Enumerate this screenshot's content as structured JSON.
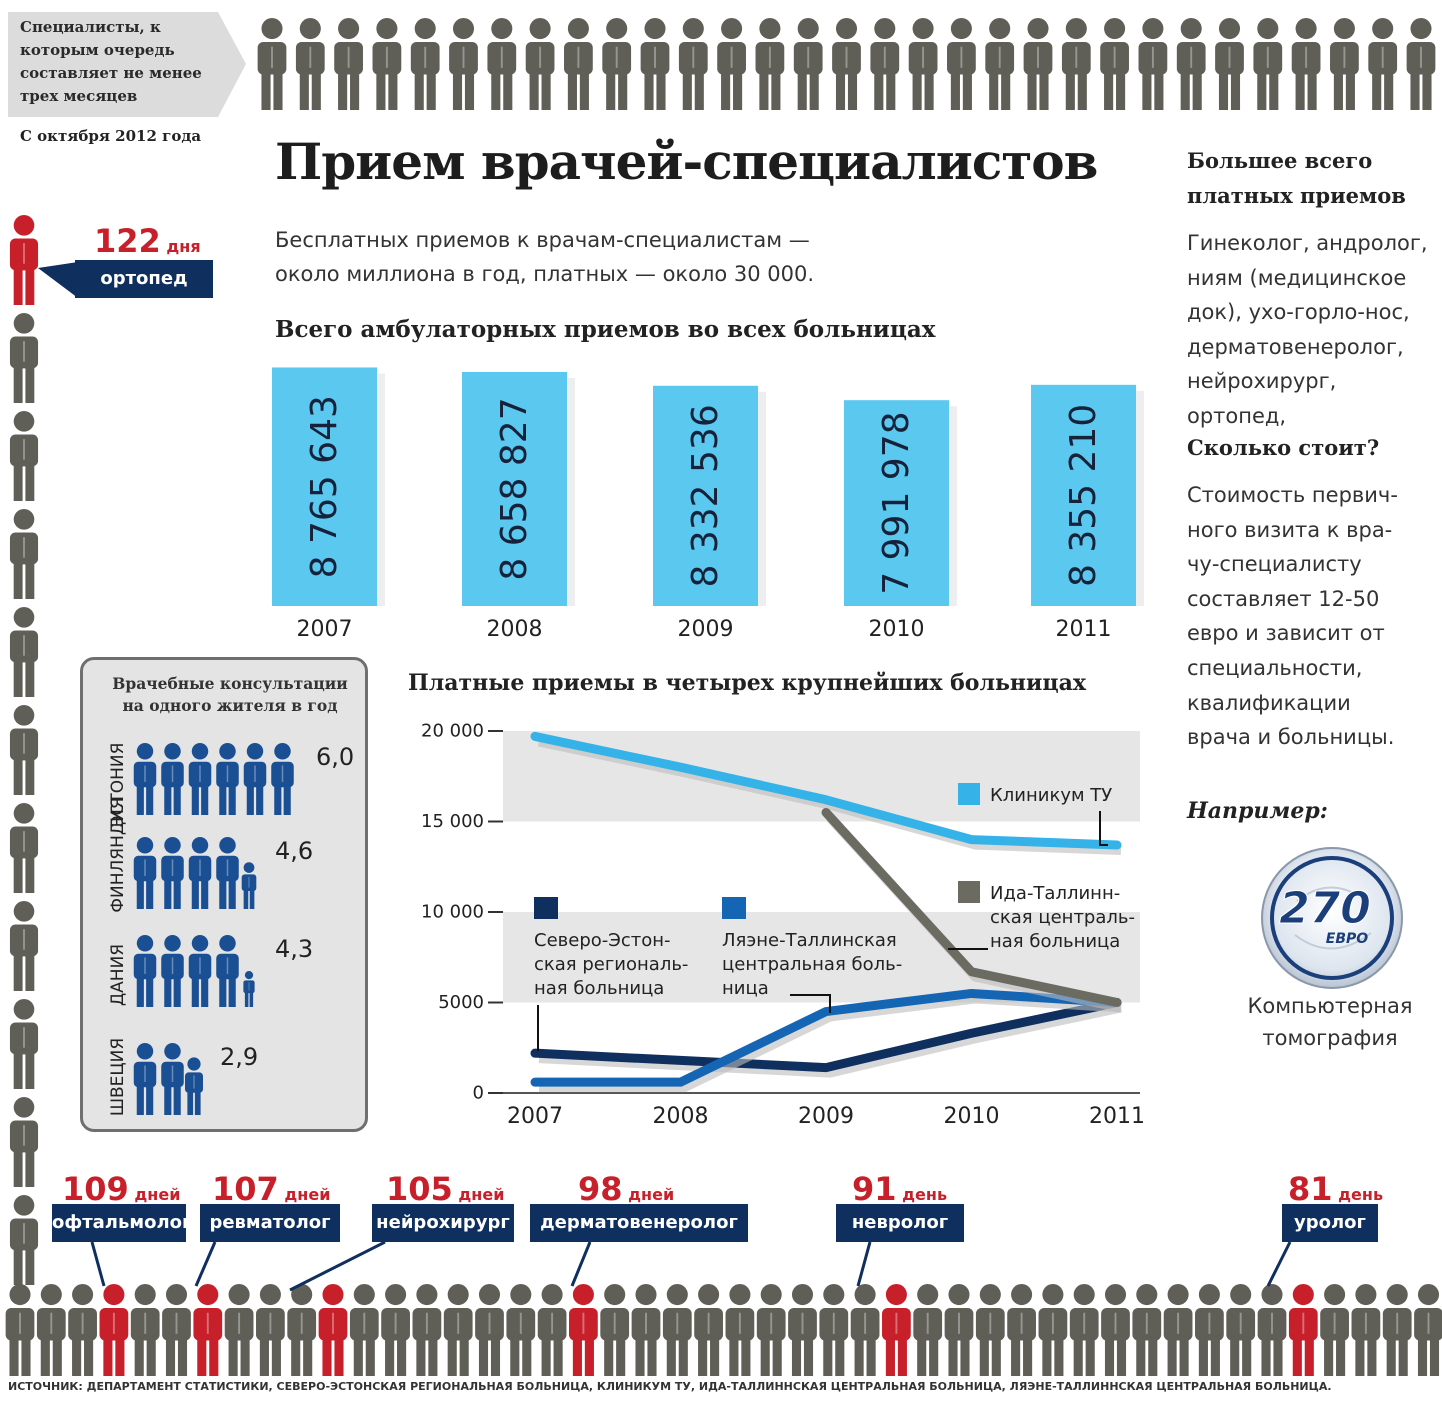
{
  "waiting": {
    "box_text": "Специалисты, к которым очередь составляет не менее трех месяцев",
    "since": "С октября 2012 года",
    "specialists": [
      {
        "days": "122",
        "unit": "дня",
        "name": "ортопед"
      },
      {
        "days": "109",
        "unit": "дней",
        "name": "офтальмолог"
      },
      {
        "days": "107",
        "unit": "дней",
        "name": "ревматолог"
      },
      {
        "days": "105",
        "unit": "дней",
        "name": "нейрохирург"
      },
      {
        "days": "98",
        "unit": "дней",
        "name": "дерматовенеролог"
      },
      {
        "days": "91",
        "unit": "день",
        "name": "невролог"
      },
      {
        "days": "81",
        "unit": "день",
        "name": "уролог"
      }
    ]
  },
  "header": {
    "title": "Прием врачей-специалистов",
    "lead_line1": "Бесплатных приемов к врачам-специалистам —",
    "lead_line2": "около миллиона в год, платных — около 30 000."
  },
  "sidebar": {
    "most_paid_heading_1": "Большее всего",
    "most_paid_heading_2": "платных приемов",
    "most_paid_lines": [
      "Гинеколог, андролог,",
      "ниям (медицинское",
      "док), ухо-горло-нос,",
      "дерматовенеролог,",
      "нейрохирург, ортопед,"
    ],
    "cost_heading": "Сколько стоит?",
    "cost_lines": [
      "Стоимость первич-",
      "ного визита к вра-",
      "чу-специалисту",
      "составляет 12-50",
      "евро и зависит от",
      "специальности,",
      "квалификации",
      "врача и больницы."
    ],
    "example_heading": "Например:",
    "coin_value": "270",
    "coin_unit": "ЕВРО",
    "ct_line1": "Компьютерная",
    "ct_line2": "томография"
  },
  "source": "ИСТОЧНИК: ДЕПАРТАМЕНТ СТАТИСТИКИ, СЕВЕРО-ЭСТОНСКАЯ РЕГИОНАЛЬНАЯ БОЛЬНИЦА, КЛИНИКУМ ТУ, ИДА-ТАЛЛИННСКАЯ ЦЕНТРАЛЬНАЯ БОЛЬНИЦА, ЛЯЭНЕ-ТАЛЛИННСКАЯ ЦЕНТРАЛЬНАЯ БОЛЬНИЦА.",
  "colors": {
    "bar": "#5bc8f0",
    "navy": "#0f2f5f",
    "red": "#c8202a",
    "gray_person": "#5f5f57",
    "klinikum": "#35b3e8",
    "ida": "#6b6b62",
    "lyaene": "#1565b5",
    "pohja": "#0f2f5f"
  },
  "chart_data": [
    {
      "type": "bar",
      "title": "Всего амбулаторных приемов во всех больницах",
      "categories": [
        "2007",
        "2008",
        "2009",
        "2010",
        "2011"
      ],
      "values": [
        8765643,
        8658827,
        8332536,
        7991978,
        8355210
      ],
      "labels": [
        "8 765 643",
        "8 658 827",
        "8 332 536",
        "7 991 978",
        "8 355 210"
      ]
    },
    {
      "type": "line",
      "title": "Платные приемы в четырех крупнейших больницах",
      "x": [
        "2007",
        "2008",
        "2009",
        "2010",
        "2011"
      ],
      "ylim": [
        0,
        20000
      ],
      "yticks": [
        "0",
        "5000",
        "10 000",
        "15 000",
        "20 000"
      ],
      "series": [
        {
          "name": "Клиникум ТУ",
          "values": [
            19700,
            18000,
            16200,
            14000,
            13700
          ]
        },
        {
          "name": "Ида-Таллиннская центральная больница",
          "values": [
            null,
            null,
            15500,
            6700,
            5000
          ]
        },
        {
          "name": "Северо-Эстонская региональная больница",
          "values": [
            2200,
            1800,
            1400,
            3300,
            5000
          ]
        },
        {
          "name": "Ляэне-Таллинская центральная больница",
          "values": [
            600,
            600,
            4500,
            5500,
            5000
          ]
        }
      ],
      "legend": {
        "klinikum": "Клиникум ТУ",
        "ida": [
          "Ида-Таллинн-",
          "ская централь-",
          "ная больница"
        ],
        "pohja": [
          "Северо-Эстон-",
          "ская региональ-",
          "ная больница"
        ],
        "lyaene": [
          "Ляэне-Таллинская",
          "центральная боль-",
          "ница"
        ]
      }
    },
    {
      "type": "pictogram",
      "title": "Врачебные консультации на одного жителя в год",
      "categories": [
        "ЭСТОНИЯ",
        "ФИНЛЯНДИЯ",
        "ДАНИЯ",
        "ШВЕЦИЯ"
      ],
      "rows": [
        {
          "country": "ЭСТОНИЯ",
          "value": 6.0,
          "label": "6,0"
        },
        {
          "country": "ДАНИЯ",
          "value": 4.6,
          "label": "4,6"
        },
        {
          "country": "ФИНЛЯНДИЯ",
          "value": 4.3,
          "label": "4,3"
        },
        {
          "country": "ШВЕЦИЯ",
          "value": 2.9,
          "label": "2,9"
        }
      ]
    }
  ]
}
